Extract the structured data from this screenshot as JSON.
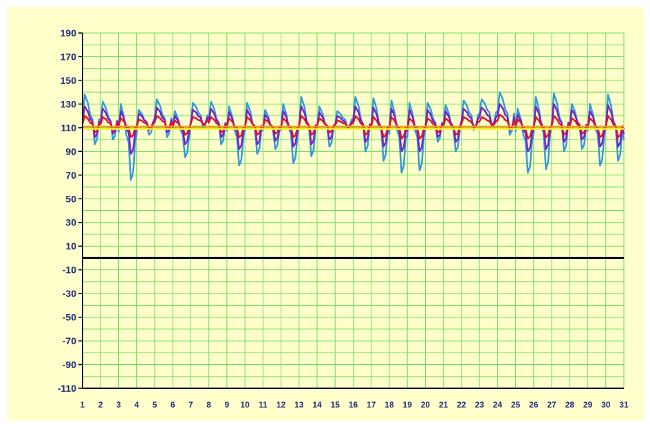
{
  "chart_data": {
    "type": "line",
    "title": "",
    "xlabel": "",
    "ylabel": "",
    "x_categories": [
      "1",
      "2",
      "3",
      "4",
      "5",
      "6",
      "7",
      "8",
      "9",
      "10",
      "11",
      "12",
      "13",
      "14",
      "15",
      "16",
      "17",
      "18",
      "19",
      "20",
      "21",
      "22",
      "23",
      "24",
      "25",
      "26",
      "27",
      "28",
      "29",
      "30",
      "31"
    ],
    "y_ticks": [
      190,
      170,
      150,
      130,
      110,
      90,
      70,
      50,
      30,
      10,
      -10,
      -30,
      -50,
      -70,
      -90,
      -110
    ],
    "ylim": [
      -110,
      190
    ],
    "xlim": [
      1,
      31
    ],
    "grid": true,
    "legend": "none",
    "zero_line": 0,
    "series": [
      {
        "color": "#3399dd",
        "day_peaks": [
          138,
          132,
          130,
          125,
          134,
          124,
          131,
          132,
          128,
          131,
          125,
          130,
          136,
          128,
          124,
          136,
          135,
          133,
          131,
          131,
          129,
          133,
          134,
          140,
          126,
          136,
          139,
          130,
          130,
          138,
          118
        ],
        "day_troughs": [
          96,
          100,
          66,
          104,
          102,
          85,
          110,
          96,
          78,
          88,
          92,
          80,
          86,
          94,
          110,
          90,
          82,
          72,
          74,
          98,
          90,
          108,
          112,
          104,
          72,
          75,
          90,
          92,
          78,
          82,
          80
        ]
      },
      {
        "color": "#7722cc",
        "day_peaks": [
          128,
          126,
          124,
          122,
          127,
          120,
          125,
          126,
          123,
          125,
          121,
          124,
          128,
          123,
          120,
          128,
          127,
          126,
          125,
          125,
          124,
          126,
          127,
          130,
          121,
          128,
          130,
          125,
          124,
          129,
          115
        ],
        "day_troughs": [
          102,
          105,
          88,
          108,
          106,
          96,
          112,
          102,
          92,
          96,
          99,
          94,
          96,
          100,
          110,
          98,
          94,
          90,
          90,
          102,
          98,
          110,
          112,
          108,
          90,
          92,
          98,
          100,
          94,
          94,
          94
        ]
      },
      {
        "color": "#dd1133",
        "day_peaks": [
          120,
          119,
          118,
          117,
          120,
          116,
          119,
          119,
          118,
          119,
          117,
          118,
          120,
          118,
          116,
          120,
          119,
          119,
          118,
          118,
          118,
          119,
          119,
          121,
          117,
          119,
          120,
          118,
          118,
          120,
          114
        ],
        "day_troughs": [
          106,
          108,
          102,
          110,
          109,
          104,
          113,
          106,
          102,
          104,
          105,
          102,
          104,
          106,
          111,
          104,
          102,
          101,
          101,
          106,
          104,
          111,
          112,
          110,
          101,
          102,
          104,
          105,
          102,
          102,
          103
        ]
      },
      {
        "color": "#ff9900",
        "constant": 111
      },
      {
        "color": "#ffee33",
        "constant": 109
      }
    ]
  },
  "colors": {
    "background": "#ffffcc",
    "grid": "#66dd55",
    "axis": "#000000",
    "tick_text": "#1f2a7a"
  }
}
